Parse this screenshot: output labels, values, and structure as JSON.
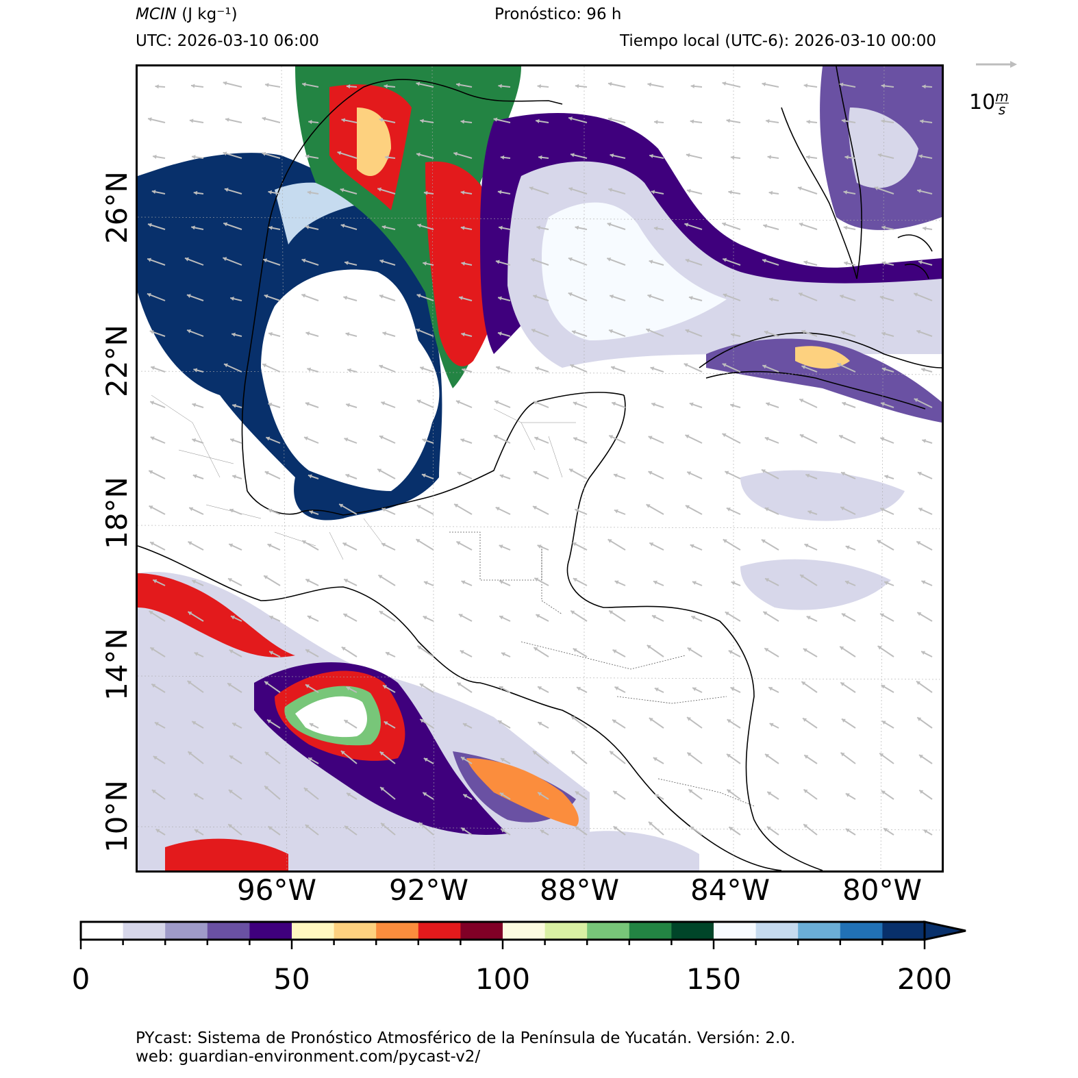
{
  "header": {
    "variable": "MCIN",
    "units": "(J kg⁻¹)",
    "forecast": "Pronóstico: 96 h",
    "utc": "UTC:  2026-03-10 06:00",
    "local_time": "Tiempo local (UTC-6): 2026-03-10 00:00"
  },
  "map": {
    "latitude_labels": [
      "26°N",
      "22°N",
      "18°N",
      "14°N",
      "10°N"
    ],
    "longitude_labels": [
      "96°W",
      "92°W",
      "88°W",
      "84°W",
      "80°W"
    ],
    "extent": {
      "lon_min": -100,
      "lon_max": -78.5,
      "lat_min": 8.5,
      "lat_max": 29.8
    },
    "wind_direction": "from east-northeast",
    "colors": {
      "ocean": "#ffffff",
      "land_lines": "#000000",
      "wind_arrows": "#bdbdbd"
    }
  },
  "reference_vector": {
    "value": "10",
    "units_top": "m",
    "units_bottom": "s"
  },
  "colorbar": {
    "min": 0,
    "max": 200,
    "step": 10,
    "tick_labels": [
      "0",
      "50",
      "100",
      "150",
      "200"
    ],
    "colors": [
      "#ffffff",
      "#d7d7ea",
      "#9f9bc9",
      "#6a51a3",
      "#3f007d",
      "#fff7c0",
      "#fdd17f",
      "#fb8d3d",
      "#e31a1c",
      "#800026",
      "#fcfbe0",
      "#d9f0a3",
      "#78c679",
      "#238443",
      "#004529",
      "#f7fbff",
      "#c6dbef",
      "#6baed6",
      "#2171b5",
      "#08306b"
    ],
    "extend": "max"
  },
  "footer": {
    "line1": "PYcast: Sistema de Pronóstico Atmosférico de la Península de Yucatán. Versión: 2.0.",
    "line2": "web: guardian-environment.com/pycast-v2/"
  }
}
